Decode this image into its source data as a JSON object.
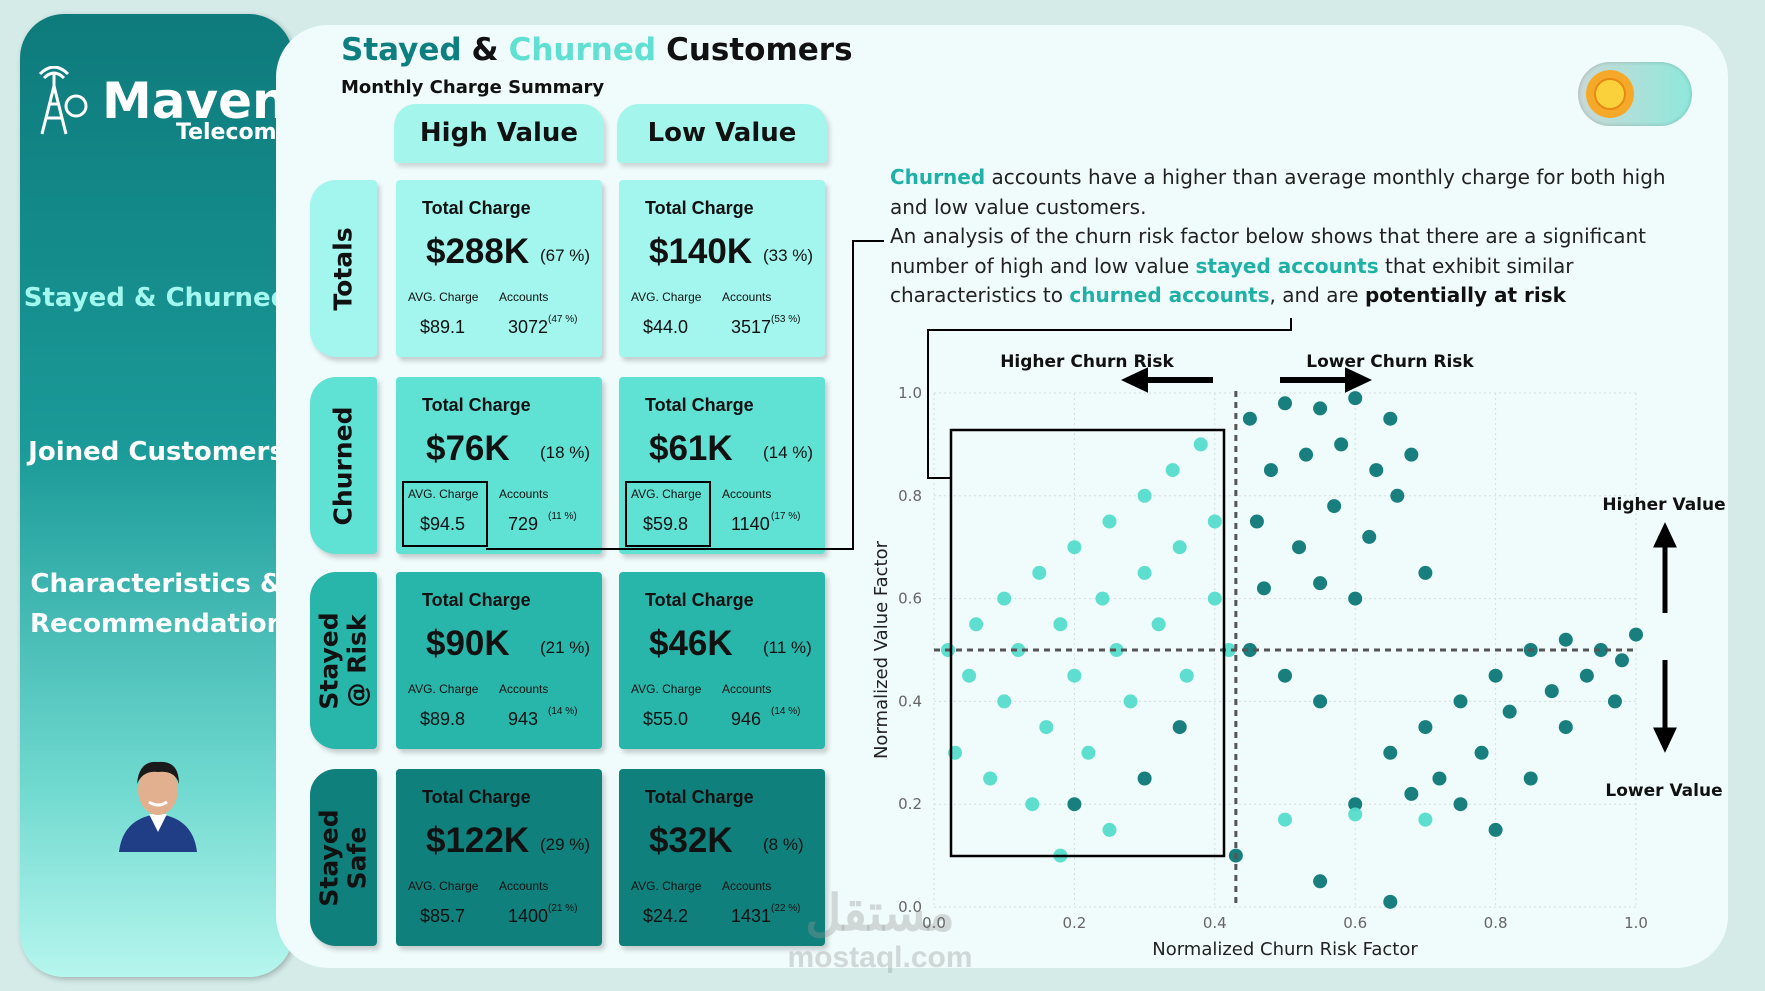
{
  "sidebar": {
    "logo": "Maven",
    "logo_sub": "Telecom",
    "nav": [
      "Stayed & Churned",
      "Joined Customers",
      "Characteristics & Recommendations"
    ]
  },
  "header": {
    "title_parts": [
      {
        "text": "Stayed",
        "color": "#0e7f80"
      },
      {
        "text": "&",
        "color": "#111111"
      },
      {
        "text": "Churned",
        "color": "#5fe0d3"
      },
      {
        "text": "Customers",
        "color": "#111111"
      }
    ],
    "subtitle": "Monthly Charge Summary"
  },
  "columns": [
    "High Value",
    "Low Value"
  ],
  "rows": [
    {
      "label": [
        "Totals"
      ],
      "color": "#a2f6ed",
      "boxed": false,
      "cells": [
        {
          "total_label": "Total Charge",
          "total": "$288K",
          "share": "(67 %)",
          "avg_label": "AVG. Charge",
          "avg": "$89.1",
          "accounts_label": "Accounts",
          "accounts": "3072",
          "accounts_share": "(47 %)"
        },
        {
          "total_label": "Total Charge",
          "total": "$140K",
          "share": "(33 %)",
          "avg_label": "AVG. Charge",
          "avg": "$44.0",
          "accounts_label": "Accounts",
          "accounts": "3517",
          "accounts_share": "(53 %)"
        }
      ]
    },
    {
      "label": [
        "Churned"
      ],
      "color": "#5fe1d4",
      "boxed": true,
      "cells": [
        {
          "total_label": "Total Charge",
          "total": "$76K",
          "share": "(18 %)",
          "avg_label": "AVG. Charge",
          "avg": "$94.5",
          "accounts_label": "Accounts",
          "accounts": "729",
          "accounts_share": "(11 %)"
        },
        {
          "total_label": "Total Charge",
          "total": "$61K",
          "share": "(14 %)",
          "avg_label": "AVG. Charge",
          "avg": "$59.8",
          "accounts_label": "Accounts",
          "accounts": "1140",
          "accounts_share": "(17 %)"
        }
      ]
    },
    {
      "label": [
        "Stayed",
        "@ Risk"
      ],
      "color": "#29b6aa",
      "boxed": false,
      "cells": [
        {
          "total_label": "Total Charge",
          "total": "$90K",
          "share": "(21 %)",
          "avg_label": "AVG. Charge",
          "avg": "$89.8",
          "accounts_label": "Accounts",
          "accounts": "943",
          "accounts_share": "(14 %)"
        },
        {
          "total_label": "Total Charge",
          "total": "$46K",
          "share": "(11 %)",
          "avg_label": "AVG. Charge",
          "avg": "$55.0",
          "accounts_label": "Accounts",
          "accounts": "946",
          "accounts_share": "(14 %)"
        }
      ]
    },
    {
      "label": [
        "Stayed",
        "Safe"
      ],
      "color": "#0f807c",
      "boxed": false,
      "cells": [
        {
          "total_label": "Total Charge",
          "total": "$122K",
          "share": "(29 %)",
          "avg_label": "AVG. Charge",
          "avg": "$85.7",
          "accounts_label": "Accounts",
          "accounts": "1400",
          "accounts_share": "(21 %)"
        },
        {
          "total_label": "Total Charge",
          "total": "$32K",
          "share": "(8 %)",
          "avg_label": "AVG. Charge",
          "avg": "$24.2",
          "accounts_label": "Accounts",
          "accounts": "1431",
          "accounts_share": "(22 %)"
        }
      ]
    }
  ],
  "insight": [
    [
      {
        "text": "Churned",
        "style": "accent"
      },
      {
        "text": " accounts have a higher than average monthly charge for both high and low value customers.",
        "style": "plain"
      }
    ],
    [
      {
        "text": "An analysis of the churn risk factor below shows that there are a significant number of high and low value ",
        "style": "plain"
      },
      {
        "text": "stayed accounts",
        "style": "accent"
      },
      {
        "text": " that exhibit similar characteristics to ",
        "style": "plain"
      },
      {
        "text": "churned accounts",
        "style": "accent"
      },
      {
        "text": ", and are ",
        "style": "plain"
      },
      {
        "text": "potentially at risk",
        "style": "bold"
      }
    ]
  ],
  "watermark": [
    "مستقل",
    "mostaql.com"
  ],
  "chart_data": {
    "type": "scatter",
    "x_label": "Normalized Churn Risk Factor",
    "y_label": "Normalized Value Factor",
    "annotations": {
      "left": "Higher Churn Risk",
      "right": "Lower Churn Risk",
      "top": "Higher Value",
      "bottom": "Lower Value"
    },
    "xlim": [
      0,
      1
    ],
    "ylim": [
      0,
      1
    ],
    "xticks": [
      {
        "value": 0,
        "label": "0.0"
      },
      0.2,
      0.4,
      0.6,
      0.8,
      {
        "value": 1,
        "label": "1.0"
      }
    ],
    "yticks": [
      {
        "value": 0,
        "label": "0.0"
      },
      0.2,
      0.4,
      0.6,
      0.8,
      {
        "value": 1,
        "label": "1.0"
      }
    ],
    "grid": true,
    "reference_lines": {
      "x": 0.43,
      "y": 0.5
    },
    "series": [
      {
        "color": "#0c7877",
        "x": [
          0.45,
          0.5,
          0.55,
          0.6,
          0.65,
          0.48,
          0.53,
          0.58,
          0.63,
          0.68,
          0.46,
          0.52,
          0.57,
          0.62,
          0.66,
          0.47,
          0.55,
          0.6,
          0.7,
          0.45,
          0.5,
          0.55,
          0.35,
          0.3,
          0.2,
          0.65,
          0.7,
          0.75,
          0.8,
          0.85,
          0.9,
          0.95,
          1.0,
          0.72,
          0.78,
          0.82,
          0.88,
          0.93,
          0.98,
          0.6,
          0.68,
          0.75,
          0.85,
          0.9,
          0.43,
          0.55,
          0.65,
          0.8,
          0.97
        ],
        "y": [
          0.95,
          0.98,
          0.97,
          0.99,
          0.95,
          0.85,
          0.88,
          0.9,
          0.85,
          0.88,
          0.75,
          0.7,
          0.78,
          0.72,
          0.8,
          0.62,
          0.63,
          0.6,
          0.65,
          0.5,
          0.45,
          0.4,
          0.35,
          0.25,
          0.2,
          0.3,
          0.35,
          0.4,
          0.45,
          0.5,
          0.52,
          0.5,
          0.53,
          0.25,
          0.3,
          0.38,
          0.42,
          0.45,
          0.48,
          0.2,
          0.22,
          0.2,
          0.25,
          0.35,
          0.1,
          0.05,
          0.01,
          0.15,
          0.4
        ]
      },
      {
        "color": "#55dccc",
        "x": [
          0.02,
          0.03,
          0.05,
          0.06,
          0.08,
          0.1,
          0.1,
          0.12,
          0.14,
          0.15,
          0.16,
          0.18,
          0.2,
          0.2,
          0.22,
          0.24,
          0.25,
          0.26,
          0.28,
          0.3,
          0.3,
          0.32,
          0.34,
          0.35,
          0.36,
          0.38,
          0.4,
          0.4,
          0.42,
          0.25,
          0.18,
          0.6,
          0.5,
          0.7
        ],
        "y": [
          0.5,
          0.3,
          0.45,
          0.55,
          0.25,
          0.6,
          0.4,
          0.5,
          0.2,
          0.65,
          0.35,
          0.55,
          0.7,
          0.45,
          0.3,
          0.6,
          0.75,
          0.5,
          0.4,
          0.8,
          0.65,
          0.55,
          0.85,
          0.7,
          0.45,
          0.9,
          0.75,
          0.6,
          0.5,
          0.15,
          0.1,
          0.18,
          0.17,
          0.17
        ]
      }
    ]
  }
}
